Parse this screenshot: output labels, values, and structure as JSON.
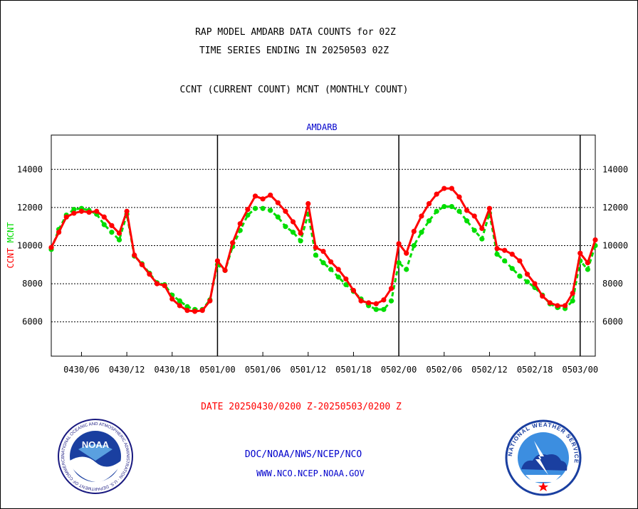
{
  "header": {
    "title_line1": "RAP MODEL AMDARB DATA COUNTS for 02Z",
    "title_line2": "TIME SERIES ENDING IN 20250503 02Z",
    "subtitle": "CCNT (CURRENT COUNT) MCNT (MONTHLY COUNT)"
  },
  "footer": {
    "date_range": "DATE 20250430/0200 Z-20250503/0200 Z",
    "line1": "DOC/NOAA/NWS/NCEP/NCO",
    "line2": "WWW.NCO.NCEP.NOAA.GOV"
  },
  "logos": {
    "left": {
      "name": "noaa-logo",
      "center_text": "NOAA",
      "ring_text": "NATIONAL OCEANIC AND ATMOSPHERIC ADMINISTRATION · U.S. DEPARTMENT OF COMMERCE"
    },
    "right": {
      "name": "nws-logo",
      "ring_text": "NATIONAL WEATHER SERVICE"
    }
  },
  "colors": {
    "ccnt": "#ff0000",
    "mcnt": "#00dd00",
    "panel_label": "#0000cc",
    "grid": "#000000"
  },
  "chart_data": {
    "type": "line",
    "panel_label": "AMDARB",
    "y_label_left": [
      "CCNT",
      "MCNT"
    ],
    "ylim": [
      4200,
      15800
    ],
    "yticks": [
      6000,
      8000,
      10000,
      12000,
      14000
    ],
    "ytick_labels": [
      "6000",
      "8000",
      "10000",
      "12000",
      "14000"
    ],
    "xlim": [
      0,
      72
    ],
    "xtick_hours": [
      4,
      10,
      16,
      22,
      28,
      34,
      40,
      46,
      52,
      58,
      64,
      70
    ],
    "xtick_labels": [
      "0430/06",
      "0430/12",
      "0430/18",
      "0501/00",
      "0501/06",
      "0501/12",
      "0501/18",
      "0502/00",
      "0502/06",
      "0502/12",
      "0502/18",
      "0503/00"
    ],
    "day_boundaries": [
      22,
      46,
      70
    ],
    "grid": true,
    "x_hours": [
      0,
      1,
      2,
      3,
      4,
      5,
      6,
      7,
      8,
      9,
      10,
      11,
      12,
      13,
      14,
      15,
      16,
      17,
      18,
      19,
      20,
      21,
      22,
      23,
      24,
      25,
      26,
      27,
      28,
      29,
      30,
      31,
      32,
      33,
      34,
      35,
      36,
      37,
      38,
      39,
      40,
      41,
      42,
      43,
      44,
      45,
      46,
      47,
      48,
      49,
      50,
      51,
      52,
      53,
      54,
      55,
      56,
      57,
      58,
      59,
      60,
      61,
      62,
      63,
      64,
      65,
      66,
      67,
      68,
      69,
      70,
      71,
      72
    ],
    "series": [
      {
        "name": "CCNT",
        "color": "#ff0000",
        "values": [
          9900,
          10700,
          11500,
          11700,
          11800,
          11750,
          11800,
          11500,
          11050,
          10650,
          11800,
          9500,
          9000,
          8500,
          8000,
          7900,
          7200,
          6850,
          6600,
          6550,
          6600,
          7100,
          9200,
          8700,
          10150,
          11150,
          11900,
          12600,
          12450,
          12650,
          12250,
          11800,
          11250,
          10650,
          12200,
          9900,
          9700,
          9150,
          8750,
          8250,
          7650,
          7100,
          7000,
          6950,
          7150,
          7750,
          10100,
          9600,
          10750,
          11550,
          12200,
          12700,
          13000,
          13000,
          12550,
          11850,
          11550,
          10900,
          11950,
          9850,
          9750,
          9550,
          9200,
          8500,
          8000,
          7350,
          7000,
          6850,
          6850,
          7500,
          9600,
          9100,
          10300
        ]
      },
      {
        "name": "MCNT",
        "color": "#00dd00",
        "values": [
          9800,
          10850,
          11600,
          11900,
          11950,
          11850,
          11650,
          11100,
          10700,
          10300,
          11650,
          9450,
          9050,
          8550,
          8050,
          7950,
          7400,
          7100,
          6800,
          6650,
          6650,
          7150,
          9000,
          8700,
          9950,
          10800,
          11600,
          11950,
          11950,
          11850,
          11500,
          11000,
          10700,
          10250,
          11650,
          9500,
          9100,
          8750,
          8350,
          7950,
          7600,
          7200,
          6850,
          6650,
          6650,
          7100,
          9100,
          8750,
          10000,
          10700,
          11300,
          11800,
          12050,
          12050,
          11800,
          11300,
          10800,
          10350,
          11700,
          9550,
          9200,
          8800,
          8400,
          8100,
          7800,
          7400,
          6950,
          6750,
          6700,
          7100,
          9200,
          8750,
          10000
        ]
      }
    ]
  }
}
